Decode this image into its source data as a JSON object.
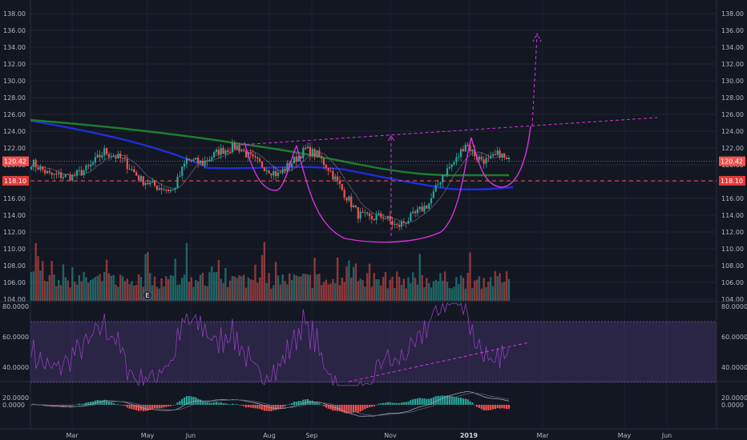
{
  "chart_data": {
    "type": "candlestick",
    "price_axis": {
      "ticks": [
        "104.00",
        "106.00",
        "108.00",
        "110.00",
        "112.00",
        "114.00",
        "116.00",
        "118.00",
        "120.00",
        "122.00",
        "124.00",
        "126.00",
        "128.00",
        "130.00",
        "132.00",
        "134.00",
        "136.00",
        "138.00"
      ],
      "range": [
        104,
        139
      ]
    },
    "time_axis": {
      "labels": [
        {
          "text": "Mar",
          "bold": false
        },
        {
          "text": "May",
          "bold": false
        },
        {
          "text": "Jun",
          "bold": false
        },
        {
          "text": "Aug",
          "bold": false
        },
        {
          "text": "Sep",
          "bold": false
        },
        {
          "text": "Nov",
          "bold": false
        },
        {
          "text": "2019",
          "bold": true
        },
        {
          "text": "Mar",
          "bold": false
        },
        {
          "text": "May",
          "bold": false
        },
        {
          "text": "Jun",
          "bold": false
        }
      ]
    },
    "last_price": "120.42",
    "support_level": "118.10",
    "earnings_marker": "E",
    "anchors": [
      {
        "x": 0,
        "y": 120.3
      },
      {
        "x": 8,
        "y": 118.8
      },
      {
        "x": 18,
        "y": 118.6
      },
      {
        "x": 25,
        "y": 119.6
      },
      {
        "x": 32,
        "y": 121.6
      },
      {
        "x": 40,
        "y": 120.6
      },
      {
        "x": 48,
        "y": 118.2
      },
      {
        "x": 55,
        "y": 117.4
      },
      {
        "x": 62,
        "y": 116.9
      },
      {
        "x": 68,
        "y": 120.6
      },
      {
        "x": 75,
        "y": 120.2
      },
      {
        "x": 82,
        "y": 121.6
      },
      {
        "x": 90,
        "y": 122.2
      },
      {
        "x": 97,
        "y": 120.6
      },
      {
        "x": 103,
        "y": 119.6
      },
      {
        "x": 108,
        "y": 118.8
      },
      {
        "x": 114,
        "y": 120.3
      },
      {
        "x": 120,
        "y": 121.8
      },
      {
        "x": 125,
        "y": 121.2
      },
      {
        "x": 130,
        "y": 119.6
      },
      {
        "x": 137,
        "y": 116.6
      },
      {
        "x": 143,
        "y": 114.1
      },
      {
        "x": 148,
        "y": 113.6
      },
      {
        "x": 154,
        "y": 113.9
      },
      {
        "x": 160,
        "y": 112.6
      },
      {
        "x": 167,
        "y": 113.9
      },
      {
        "x": 174,
        "y": 115.4
      },
      {
        "x": 180,
        "y": 118.8
      },
      {
        "x": 186,
        "y": 120.6
      },
      {
        "x": 190,
        "y": 122.6
      },
      {
        "x": 195,
        "y": 120.9
      },
      {
        "x": 200,
        "y": 120.4
      },
      {
        "x": 205,
        "y": 121.4
      },
      {
        "x": 208,
        "y": 120.42
      }
    ],
    "rsi_axis": {
      "ticks": [
        "80.0000",
        "60.0000",
        "40.0000",
        "20.0000"
      ],
      "band": [
        30,
        70
      ]
    },
    "macd_axis": {
      "ticks": [
        "0.0000"
      ]
    }
  }
}
